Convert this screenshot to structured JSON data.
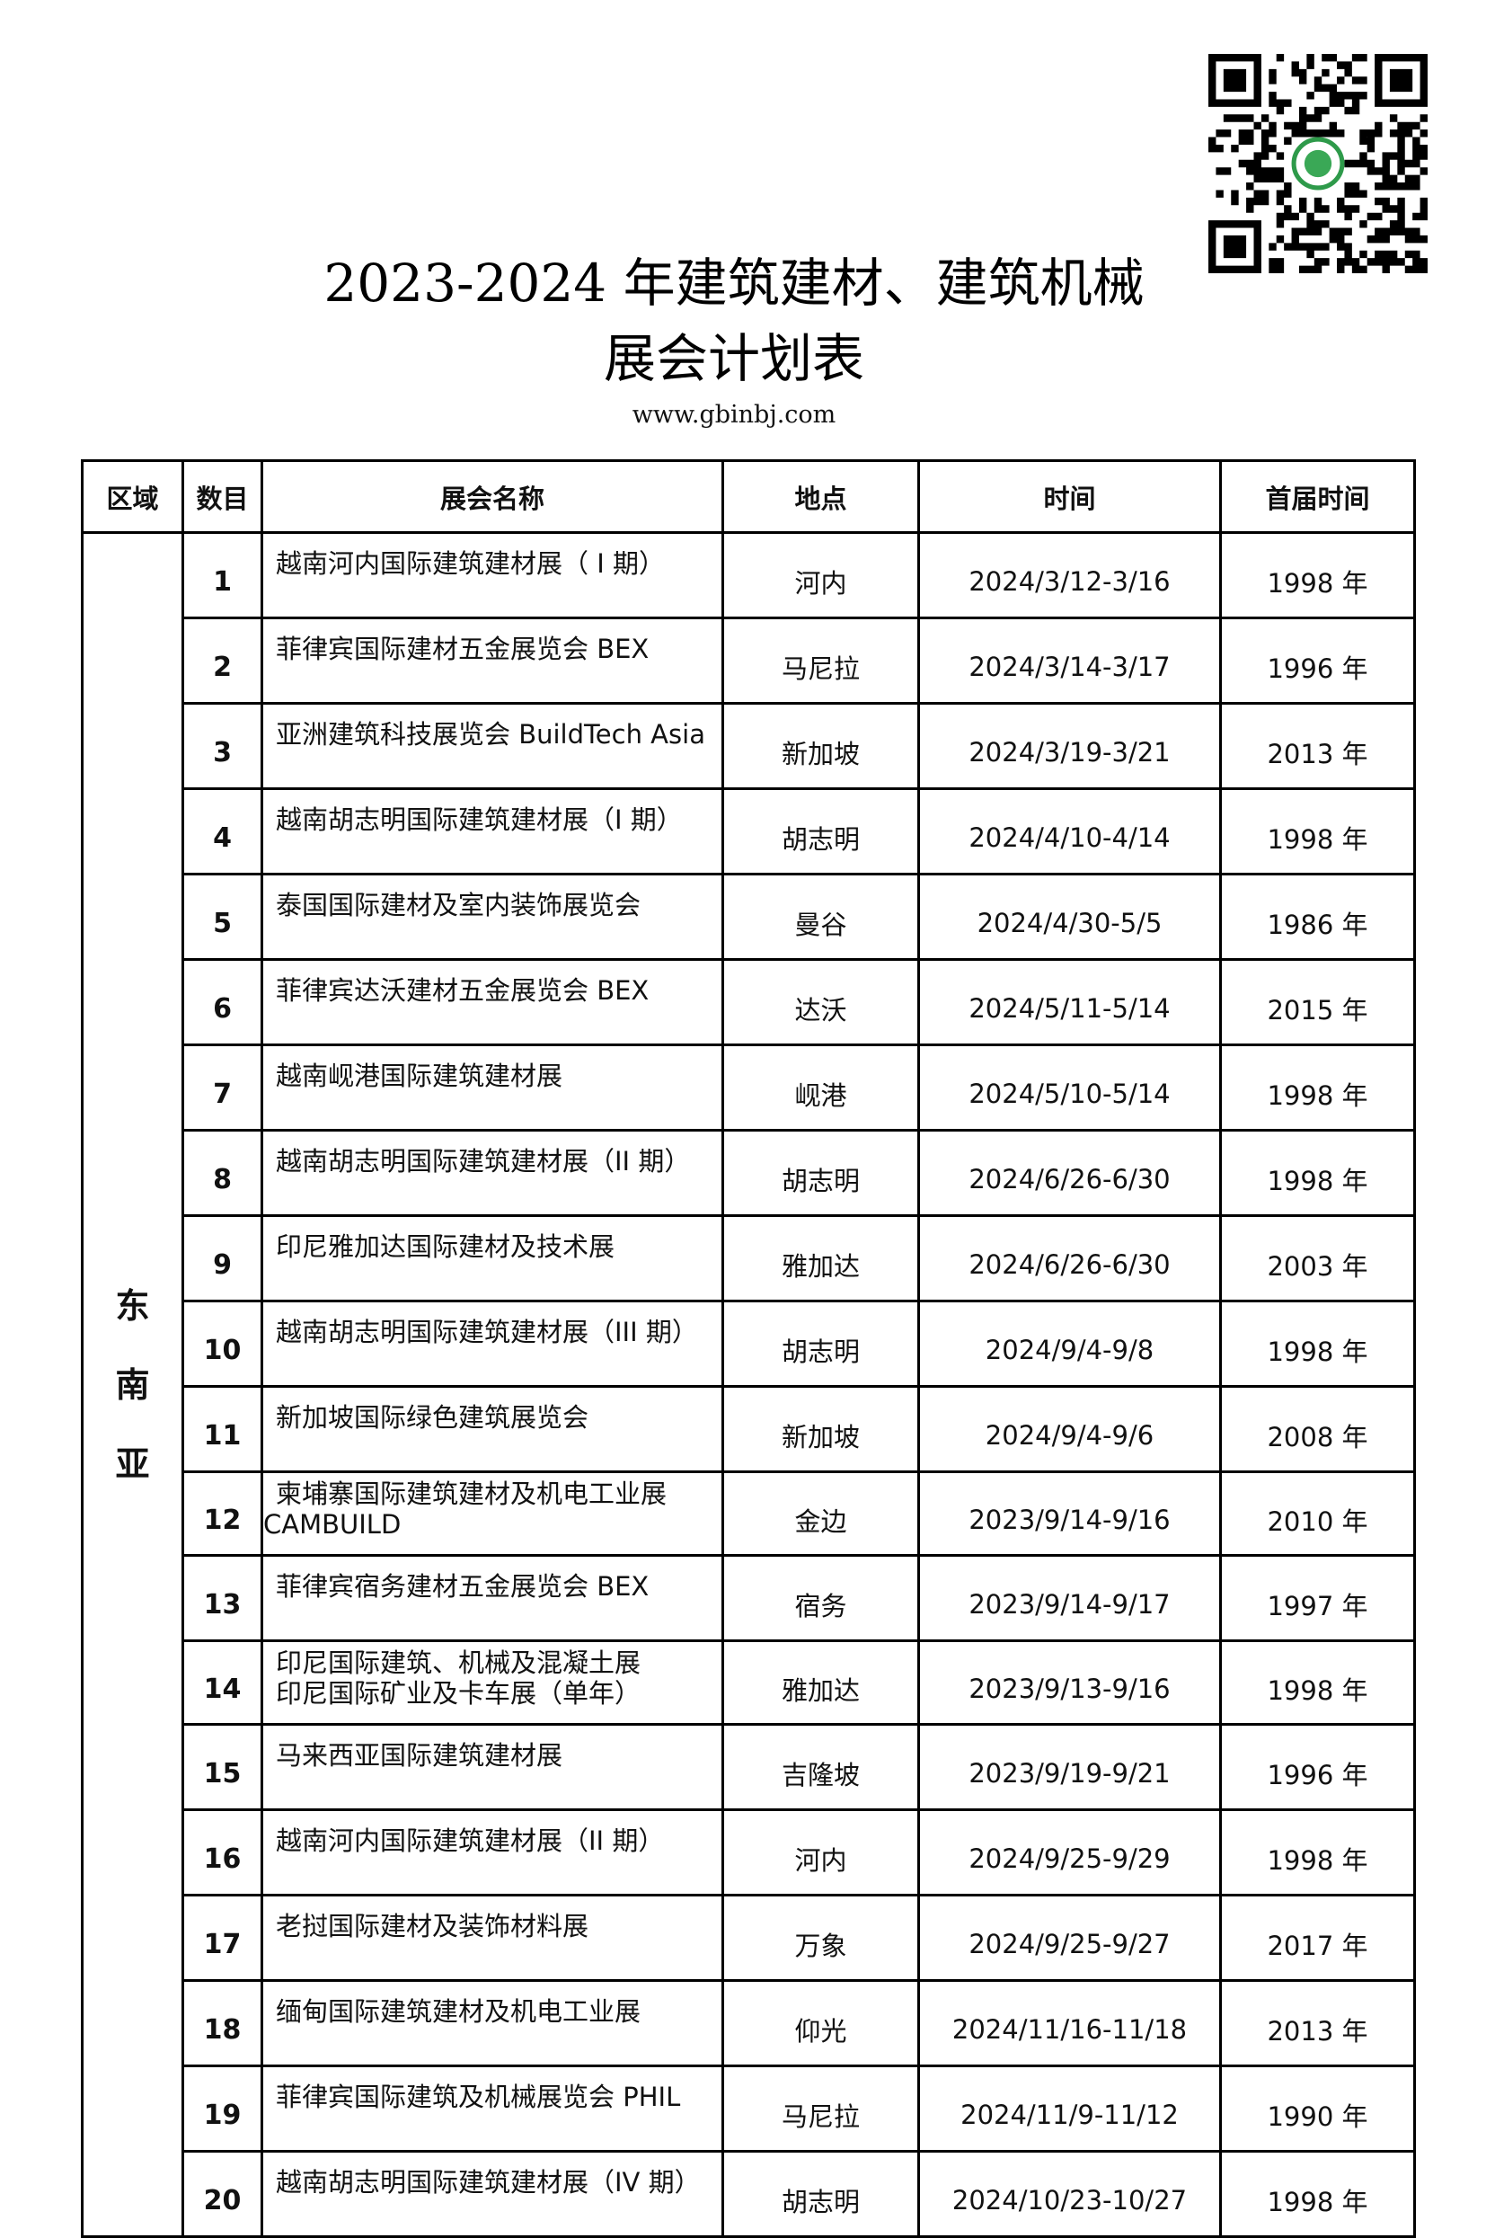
{
  "header": {
    "title_line1": "2023-2024 年建筑建材、建筑机械",
    "title_line2": "展会计划表",
    "url": "www.gbinbj.com",
    "qr_icon": "qr-code-icon"
  },
  "table": {
    "columns": [
      "区域",
      "数目",
      "展会名称",
      "地点",
      "时间",
      "首届时间"
    ],
    "region": [
      "东",
      "南",
      "亚"
    ],
    "rows": [
      {
        "no": "1",
        "name": [
          "越南河内国际建筑建材展（ I 期）"
        ],
        "place": "河内",
        "time": "2024/3/12-3/16",
        "first": "1998 年"
      },
      {
        "no": "2",
        "name": [
          "菲律宾国际建材五金展览会 BEX"
        ],
        "place": "马尼拉",
        "time": "2024/3/14-3/17",
        "first": "1996 年"
      },
      {
        "no": "3",
        "name": [
          "亚洲建筑科技展览会 BuildTech Asia"
        ],
        "place": "新加坡",
        "time": "2024/3/19-3/21",
        "first": "2013 年"
      },
      {
        "no": "4",
        "name": [
          "越南胡志明国际建筑建材展（I 期）"
        ],
        "place": "胡志明",
        "time": "2024/4/10-4/14",
        "first": "1998 年"
      },
      {
        "no": "5",
        "name": [
          "泰国国际建材及室内装饰展览会"
        ],
        "place": "曼谷",
        "time": "2024/4/30-5/5",
        "first": "1986 年"
      },
      {
        "no": "6",
        "name": [
          "菲律宾达沃建材五金展览会 BEX"
        ],
        "place": "达沃",
        "time": "2024/5/11-5/14",
        "first": "2015 年"
      },
      {
        "no": "7",
        "name": [
          "越南岘港国际建筑建材展"
        ],
        "place": "岘港",
        "time": "2024/5/10-5/14",
        "first": "1998 年"
      },
      {
        "no": "8",
        "name": [
          "越南胡志明国际建筑建材展（II 期）"
        ],
        "place": "胡志明",
        "time": "2024/6/26-6/30",
        "first": "1998 年"
      },
      {
        "no": "9",
        "name": [
          "印尼雅加达国际建材及技术展"
        ],
        "place": "雅加达",
        "time": "2024/6/26-6/30",
        "first": "2003 年"
      },
      {
        "no": "10",
        "name": [
          "越南胡志明国际建筑建材展（III 期）"
        ],
        "place": "胡志明",
        "time": "2024/9/4-9/8",
        "first": "1998 年"
      },
      {
        "no": "11",
        "name": [
          "新加坡国际绿色建筑展览会"
        ],
        "place": "新加坡",
        "time": "2024/9/4-9/6",
        "first": "2008 年"
      },
      {
        "no": "12",
        "name": [
          "柬埔寨国际建筑建材及机电工业展",
          "CAMBUILD"
        ],
        "place": "金边",
        "time": "2023/9/14-9/16",
        "first": "2010 年"
      },
      {
        "no": "13",
        "name": [
          "菲律宾宿务建材五金展览会 BEX"
        ],
        "place": "宿务",
        "time": "2023/9/14-9/17",
        "first": "1997 年"
      },
      {
        "no": "14",
        "name": [
          "印尼国际建筑、机械及混凝土展",
          "印尼国际矿业及卡车展（单年）"
        ],
        "place": "雅加达",
        "time": "2023/9/13-9/16",
        "first": "1998 年"
      },
      {
        "no": "15",
        "name": [
          "马来西亚国际建筑建材展"
        ],
        "place": "吉隆坡",
        "time": "2023/9/19-9/21",
        "first": "1996 年"
      },
      {
        "no": "16",
        "name": [
          "越南河内国际建筑建材展（II 期）"
        ],
        "place": "河内",
        "time": "2024/9/25-9/29",
        "first": "1998 年"
      },
      {
        "no": "17",
        "name": [
          "老挝国际建材及装饰材料展"
        ],
        "place": "万象",
        "time": "2024/9/25-9/27",
        "first": "2017 年"
      },
      {
        "no": "18",
        "name": [
          "缅甸国际建筑建材及机电工业展"
        ],
        "place": "仰光",
        "time": "2024/11/16-11/18",
        "first": "2013 年"
      },
      {
        "no": "19",
        "name": [
          "菲律宾国际建筑及机械展览会 PHIL"
        ],
        "place": "马尼拉",
        "time": "2024/11/9-11/12",
        "first": "1990 年"
      },
      {
        "no": "20",
        "name": [
          "越南胡志明国际建筑建材展（IV 期）"
        ],
        "place": "胡志明",
        "time": "2024/10/23-10/27",
        "first": "1998 年"
      }
    ]
  }
}
